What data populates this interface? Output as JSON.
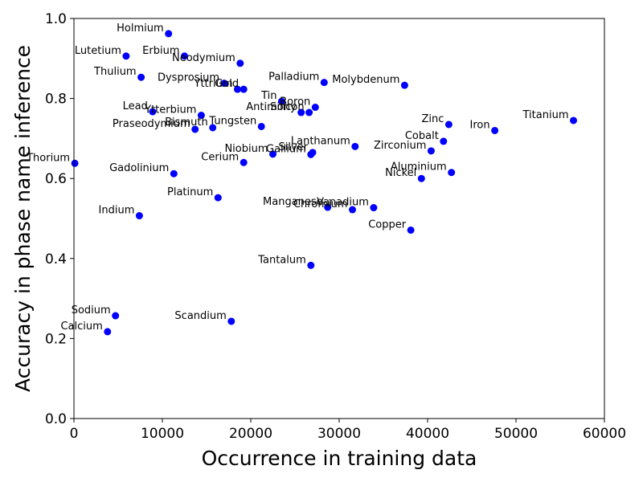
{
  "chart_data": {
    "type": "scatter",
    "xlabel": "Occurrence in training data",
    "ylabel": "Accuracy in phase name inference",
    "xlim": [
      0,
      60000
    ],
    "ylim": [
      0.0,
      1.0
    ],
    "xticks": [
      "0",
      "10000",
      "20000",
      "30000",
      "40000",
      "50000",
      "60000"
    ],
    "yticks": [
      "0.0",
      "0.2",
      "0.4",
      "0.6",
      "0.8",
      "1.0"
    ],
    "grid": false,
    "marker_color": "#0000ff",
    "points": [
      {
        "label": "Holmium",
        "x": 10700,
        "y": 0.962
      },
      {
        "label": "Lutetium",
        "x": 5900,
        "y": 0.906
      },
      {
        "label": "Erbium",
        "x": 12500,
        "y": 0.906
      },
      {
        "label": "Neodymium",
        "x": 18800,
        "y": 0.888
      },
      {
        "label": "Thulium",
        "x": 7600,
        "y": 0.853
      },
      {
        "label": "Dysprosium",
        "x": 17000,
        "y": 0.838
      },
      {
        "label": "Yttrium",
        "x": 18500,
        "y": 0.823
      },
      {
        "label": "Gold",
        "x": 19200,
        "y": 0.823
      },
      {
        "label": "Palladium",
        "x": 28300,
        "y": 0.84
      },
      {
        "label": "Molybdenum",
        "x": 37400,
        "y": 0.833
      },
      {
        "label": "Lead",
        "x": 8900,
        "y": 0.767
      },
      {
        "label": "Ytterbium",
        "x": 14400,
        "y": 0.758
      },
      {
        "label": "Praseodymium",
        "x": 13700,
        "y": 0.723
      },
      {
        "label": "Bismuth",
        "x": 15700,
        "y": 0.727
      },
      {
        "label": "Tungsten",
        "x": 21200,
        "y": 0.73
      },
      {
        "label": "Tin",
        "x": 23500,
        "y": 0.793
      },
      {
        "label": "Antimony",
        "x": 25700,
        "y": 0.765
      },
      {
        "label": "Silicon",
        "x": 26600,
        "y": 0.765
      },
      {
        "label": "Boron",
        "x": 27300,
        "y": 0.778
      },
      {
        "label": "Thorium",
        "x": 100,
        "y": 0.638
      },
      {
        "label": "Gadolinium",
        "x": 11300,
        "y": 0.612
      },
      {
        "label": "Cerium",
        "x": 19200,
        "y": 0.64
      },
      {
        "label": "Niobium",
        "x": 22500,
        "y": 0.661
      },
      {
        "label": "Gallium",
        "x": 26800,
        "y": 0.66
      },
      {
        "label": "Silver",
        "x": 27000,
        "y": 0.665
      },
      {
        "label": "Lanthanum",
        "x": 31800,
        "y": 0.68
      },
      {
        "label": "Zinc",
        "x": 42400,
        "y": 0.735
      },
      {
        "label": "Titanium",
        "x": 56500,
        "y": 0.745
      },
      {
        "label": "Iron",
        "x": 47600,
        "y": 0.72
      },
      {
        "label": "Cobalt",
        "x": 41800,
        "y": 0.693
      },
      {
        "label": "Zirconium",
        "x": 40400,
        "y": 0.669
      },
      {
        "label": "Aluminium",
        "x": 42700,
        "y": 0.615
      },
      {
        "label": "Nickel",
        "x": 39300,
        "y": 0.6
      },
      {
        "label": "Platinum",
        "x": 16300,
        "y": 0.552
      },
      {
        "label": "Manganese",
        "x": 28700,
        "y": 0.528
      },
      {
        "label": "Chromium",
        "x": 31500,
        "y": 0.522
      },
      {
        "label": "Vanadium",
        "x": 33900,
        "y": 0.527
      },
      {
        "label": "Indium",
        "x": 7400,
        "y": 0.507
      },
      {
        "label": "Copper",
        "x": 38100,
        "y": 0.471
      },
      {
        "label": "Tantalum",
        "x": 26800,
        "y": 0.383
      },
      {
        "label": "Sodium",
        "x": 4700,
        "y": 0.257
      },
      {
        "label": "Scandium",
        "x": 17800,
        "y": 0.243
      },
      {
        "label": "Calcium",
        "x": 3800,
        "y": 0.217
      }
    ]
  }
}
